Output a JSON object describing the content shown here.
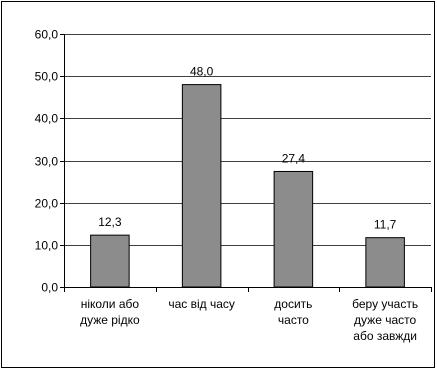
{
  "chart_data": {
    "type": "bar",
    "title": "",
    "xlabel": "",
    "ylabel": "",
    "ylim": [
      0,
      60
    ],
    "y_ticks": [
      "0,0",
      "10,0",
      "20,0",
      "30,0",
      "40,0",
      "50,0",
      "60,0"
    ],
    "categories": [
      [
        "ніколи або",
        "дуже рідко"
      ],
      [
        "час від часу"
      ],
      [
        "досить",
        "часто"
      ],
      [
        "беру участь",
        "дуже часто",
        "або завжди"
      ]
    ],
    "values": [
      12.3,
      48.0,
      27.4,
      11.7
    ],
    "value_labels": [
      "12,3",
      "48,0",
      "27,4",
      "11,7"
    ],
    "grid": true,
    "legend": "none",
    "colors": {
      "bar_fill": "#8c8c8c",
      "bar_stroke": "#000000",
      "grid": "#000000",
      "axis": "#000000"
    }
  }
}
